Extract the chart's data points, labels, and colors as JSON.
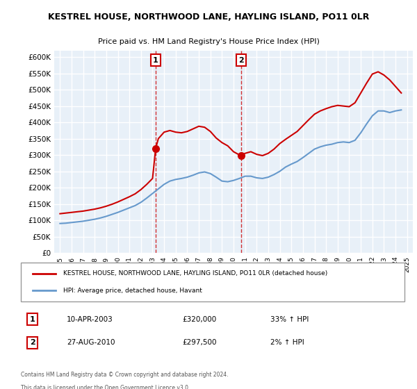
{
  "title": "KESTREL HOUSE, NORTHWOOD LANE, HAYLING ISLAND, PO11 0LR",
  "subtitle": "Price paid vs. HM Land Registry's House Price Index (HPI)",
  "ylabel_ticks": [
    "£0",
    "£50K",
    "£100K",
    "£150K",
    "£200K",
    "£250K",
    "£300K",
    "£350K",
    "£400K",
    "£450K",
    "£500K",
    "£550K",
    "£600K"
  ],
  "ylim": [
    0,
    620000
  ],
  "yticks": [
    0,
    50000,
    100000,
    150000,
    200000,
    250000,
    300000,
    350000,
    400000,
    450000,
    500000,
    550000,
    600000
  ],
  "background_color": "#e8f0f8",
  "plot_bg": "#e8f0f8",
  "grid_color": "#ffffff",
  "legend_label_red": "KESTREL HOUSE, NORTHWOOD LANE, HAYLING ISLAND, PO11 0LR (detached house)",
  "legend_label_blue": "HPI: Average price, detached house, Havant",
  "sale1_year": 2003.27,
  "sale1_price": 320000,
  "sale1_label": "1",
  "sale1_text": "10-APR-2003",
  "sale1_amount": "£320,000",
  "sale1_hpi": "33% ↑ HPI",
  "sale2_year": 2010.65,
  "sale2_price": 297500,
  "sale2_label": "2",
  "sale2_text": "27-AUG-2010",
  "sale2_amount": "£297,500",
  "sale2_hpi": "2% ↑ HPI",
  "footnote1": "Contains HM Land Registry data © Crown copyright and database right 2024.",
  "footnote2": "This data is licensed under the Open Government Licence v3.0.",
  "red_color": "#cc0000",
  "blue_color": "#6699cc",
  "hpi_years": [
    1995.0,
    1995.5,
    1996.0,
    1996.5,
    1997.0,
    1997.5,
    1998.0,
    1998.5,
    1999.0,
    1999.5,
    2000.0,
    2000.5,
    2001.0,
    2001.5,
    2002.0,
    2002.5,
    2003.0,
    2003.5,
    2004.0,
    2004.5,
    2005.0,
    2005.5,
    2006.0,
    2006.5,
    2007.0,
    2007.5,
    2008.0,
    2008.5,
    2009.0,
    2009.5,
    2010.0,
    2010.5,
    2011.0,
    2011.5,
    2012.0,
    2012.5,
    2013.0,
    2013.5,
    2014.0,
    2014.5,
    2015.0,
    2015.5,
    2016.0,
    2016.5,
    2017.0,
    2017.5,
    2018.0,
    2018.5,
    2019.0,
    2019.5,
    2020.0,
    2020.5,
    2021.0,
    2021.5,
    2022.0,
    2022.5,
    2023.0,
    2023.5,
    2024.0,
    2024.5
  ],
  "hpi_values": [
    90000,
    91000,
    93000,
    95000,
    97000,
    100000,
    103000,
    107000,
    112000,
    118000,
    124000,
    131000,
    138000,
    145000,
    155000,
    168000,
    182000,
    196000,
    210000,
    220000,
    225000,
    228000,
    232000,
    238000,
    245000,
    248000,
    243000,
    232000,
    220000,
    218000,
    222000,
    228000,
    235000,
    235000,
    230000,
    228000,
    232000,
    240000,
    250000,
    263000,
    272000,
    280000,
    292000,
    305000,
    318000,
    325000,
    330000,
    333000,
    338000,
    340000,
    338000,
    345000,
    368000,
    395000,
    420000,
    435000,
    435000,
    430000,
    435000,
    438000
  ],
  "price_years": [
    1995.0,
    1995.5,
    1996.0,
    1996.5,
    1997.0,
    1997.5,
    1998.0,
    1998.5,
    1999.0,
    1999.5,
    2000.0,
    2000.5,
    2001.0,
    2001.5,
    2002.0,
    2002.5,
    2003.0,
    2003.27,
    2003.5,
    2004.0,
    2004.5,
    2005.0,
    2005.5,
    2006.0,
    2006.5,
    2007.0,
    2007.5,
    2008.0,
    2008.5,
    2009.0,
    2009.5,
    2010.0,
    2010.65,
    2011.0,
    2011.5,
    2012.0,
    2012.5,
    2013.0,
    2013.5,
    2014.0,
    2014.5,
    2015.0,
    2015.5,
    2016.0,
    2016.5,
    2017.0,
    2017.5,
    2018.0,
    2018.5,
    2019.0,
    2019.5,
    2020.0,
    2020.5,
    2021.0,
    2021.5,
    2022.0,
    2022.5,
    2023.0,
    2023.5,
    2024.0,
    2024.5
  ],
  "price_values": [
    120000,
    122000,
    124000,
    126000,
    128000,
    131000,
    134000,
    138000,
    143000,
    149000,
    156000,
    164000,
    172000,
    181000,
    194000,
    210000,
    228000,
    320000,
    350000,
    370000,
    375000,
    370000,
    368000,
    372000,
    380000,
    388000,
    385000,
    372000,
    352000,
    338000,
    328000,
    310000,
    297500,
    305000,
    310000,
    302000,
    298000,
    305000,
    318000,
    335000,
    348000,
    360000,
    372000,
    390000,
    408000,
    425000,
    435000,
    442000,
    448000,
    452000,
    450000,
    448000,
    460000,
    490000,
    520000,
    548000,
    555000,
    545000,
    530000,
    510000,
    490000
  ]
}
